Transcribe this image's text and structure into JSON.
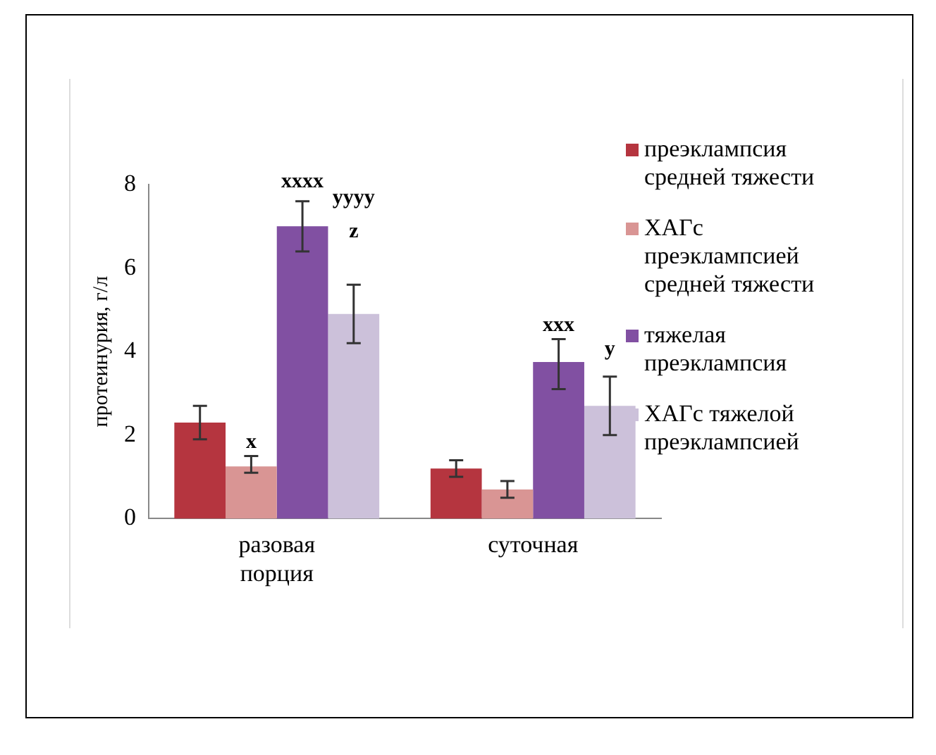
{
  "chart_data": {
    "type": "bar",
    "ylabel": "протеинурия, г/л",
    "categories": [
      "разовая порция",
      "суточная"
    ],
    "series": [
      {
        "name": "преэклампсия средней тяжести",
        "color": "#b5353f",
        "values": [
          2.3,
          1.2
        ],
        "errors": [
          [
            1.9,
            2.7
          ],
          [
            1.0,
            1.4
          ]
        ]
      },
      {
        "name": "ХАГс преэклампсией средней тяжести",
        "color": "#d99594",
        "values": [
          1.25,
          0.7
        ],
        "errors": [
          [
            1.1,
            1.5
          ],
          [
            0.5,
            0.9
          ]
        ]
      },
      {
        "name": " тяжелая преэклампсия",
        "color": "#8150a2",
        "values": [
          7.0,
          3.75
        ],
        "errors": [
          [
            6.4,
            7.6
          ],
          [
            3.1,
            4.3
          ]
        ]
      },
      {
        "name": "ХАГс тяжелой преэклампсией",
        "color": "#ccc1da",
        "values": [
          4.9,
          2.7
        ],
        "errors": [
          [
            4.2,
            5.6
          ],
          [
            2.0,
            3.4
          ]
        ]
      }
    ],
    "ylim": [
      0,
      8
    ],
    "yticks": [
      0,
      2,
      4,
      6,
      8
    ],
    "grid": false,
    "legend": "right",
    "annotations": [
      "x",
      "xxxx",
      "yyyy",
      "z",
      "xxx",
      "y"
    ]
  }
}
